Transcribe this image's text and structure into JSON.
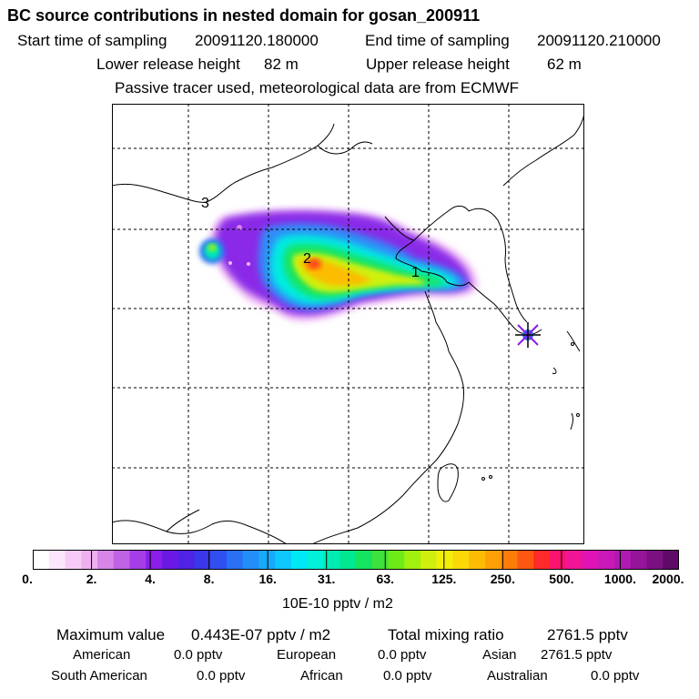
{
  "header": {
    "title": "BC  source contributions in nested domain for gosan_200911",
    "start_label": "Start time of sampling",
    "start_value": "20091120.180000",
    "end_label": "End time of sampling",
    "end_value": "20091120.210000",
    "lower_label": "Lower release height",
    "lower_value": "82 m",
    "upper_label": "Upper release height",
    "upper_value": "62 m",
    "note": "Passive tracer used, meteorological data are from ECMWF"
  },
  "map": {
    "markers": [
      {
        "label": "1",
        "name": "marker-1"
      },
      {
        "label": "2",
        "name": "marker-2"
      },
      {
        "label": "3",
        "name": "marker-3"
      }
    ],
    "receptor_icon": "star-cross-icon"
  },
  "colorbar": {
    "ticks": [
      "0.",
      "2.",
      "4.",
      "8.",
      "16.",
      "31.",
      "63.",
      "125.",
      "250.",
      "500.",
      "1000.",
      "2000."
    ],
    "unit": "10E-10 pptv / m2",
    "colors": [
      "#ffffff",
      "#fbe6fb",
      "#f6ccf6",
      "#eeb0ee",
      "#d985e8",
      "#c062e4",
      "#a43ee6",
      "#8a1de8",
      "#6b18e4",
      "#5022e6",
      "#3a36ea",
      "#2f4ff0",
      "#2a70f4",
      "#248ef8",
      "#18aafa",
      "#0cc8fc",
      "#00e8f4",
      "#00f0d8",
      "#00ecb4",
      "#00e890",
      "#14e460",
      "#3ee23a",
      "#6eea18",
      "#a0f010",
      "#cff00c",
      "#f2ee0a",
      "#fcd808",
      "#fcbc06",
      "#fca006",
      "#fc7c0a",
      "#fc5812",
      "#fc2a2a",
      "#fc1270",
      "#f01496",
      "#e014b4",
      "#c818b8",
      "#b01ab0",
      "#94149a",
      "#7a1082",
      "#5e0a66"
    ]
  },
  "footer": {
    "max_label": "Maximum value",
    "max_value": "0.443E-07 pptv / m2",
    "total_label": "Total mixing ratio",
    "total_value": "2761.5 pptv",
    "american_label": "American",
    "american_value": "0.0 pptv",
    "european_label": "European",
    "european_value": "0.0 pptv",
    "asian_label": "Asian",
    "asian_value": "2761.5 pptv",
    "south_american_label": "South American",
    "south_american_value": "0.0 pptv",
    "african_label": "African",
    "african_value": "0.0 pptv",
    "australian_label": "Australian",
    "australian_value": "0.0 pptv"
  }
}
